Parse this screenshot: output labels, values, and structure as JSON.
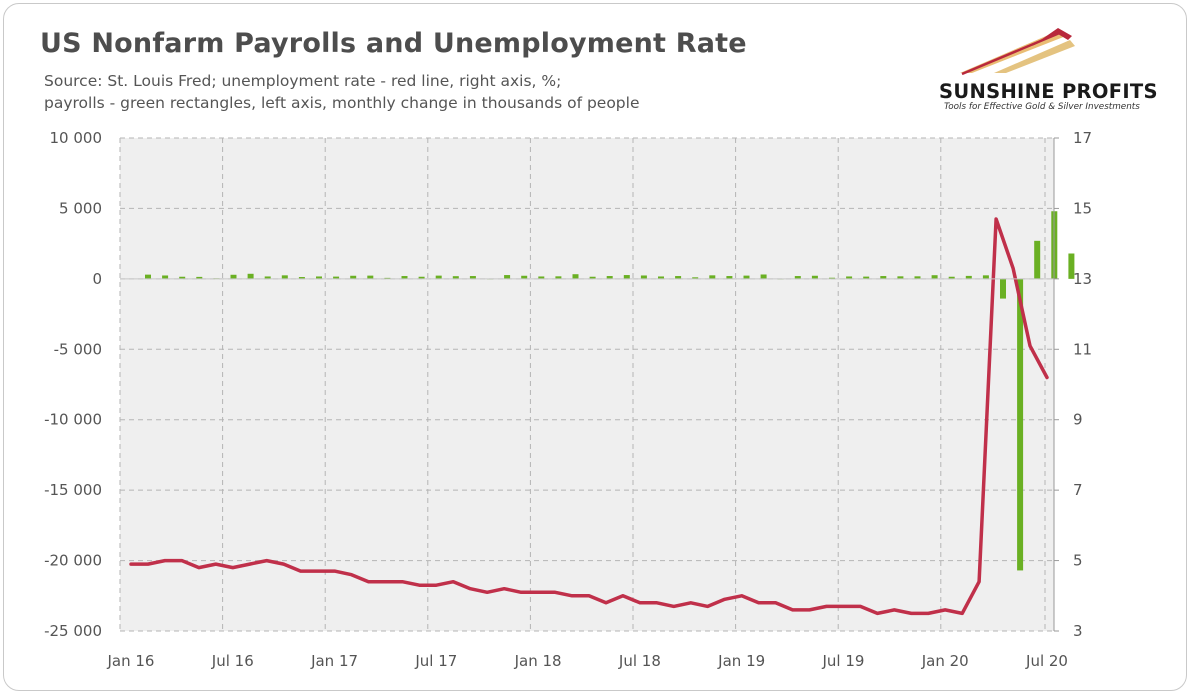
{
  "header": {
    "title": "US Nonfarm Payrolls and Unemployment Rate",
    "subtitle_line1": "Source: St. Louis Fred; unemployment rate -  red line, right axis, %;",
    "subtitle_line2": "payrolls - green rectangles, left axis, monthly change in thousands of people"
  },
  "logo": {
    "name": "SUNSHINE PROFITS",
    "tagline": "Tools for Effective Gold & Silver Investments"
  },
  "colors": {
    "payrolls_bar": "#6ab023",
    "unemployment_line": "#c0304a",
    "plot_background": "#efefef",
    "grid": "#b5b5b5"
  },
  "chart_data": {
    "type": "bar",
    "x": [
      "Jan 16",
      "Feb 16",
      "Mar 16",
      "Apr 16",
      "May 16",
      "Jun 16",
      "Jul 16",
      "Aug 16",
      "Sep 16",
      "Oct 16",
      "Nov 16",
      "Dec 16",
      "Jan 17",
      "Feb 17",
      "Mar 17",
      "Apr 17",
      "May 17",
      "Jun 17",
      "Jul 17",
      "Aug 17",
      "Sep 17",
      "Oct 17",
      "Nov 17",
      "Dec 17",
      "Jan 18",
      "Feb 18",
      "Mar 18",
      "Apr 18",
      "May 18",
      "Jun 18",
      "Jul 18",
      "Aug 18",
      "Sep 18",
      "Oct 18",
      "Nov 18",
      "Dec 18",
      "Jan 19",
      "Feb 19",
      "Mar 19",
      "Apr 19",
      "May 19",
      "Jun 19",
      "Jul 19",
      "Aug 19",
      "Sep 19",
      "Oct 19",
      "Nov 19",
      "Dec 19",
      "Jan 20",
      "Feb 20",
      "Mar 20",
      "Apr 20",
      "May 20",
      "Jun 20",
      "Jul 20"
    ],
    "x_tick_labels": [
      "Jan 16",
      "Jul 16",
      "Jan 17",
      "Jul 17",
      "Jan 18",
      "Jul 18",
      "Jan 19",
      "Jul 19",
      "Jan 20",
      "Jul 20"
    ],
    "series": [
      {
        "axis": "left",
        "type": "bar",
        "values": [
          300,
          240,
          150,
          140,
          40,
          290,
          360,
          170,
          250,
          130,
          170,
          160,
          220,
          230,
          70,
          200,
          150,
          230,
          190,
          200,
          20,
          270,
          220,
          170,
          180,
          330,
          150,
          200,
          270,
          240,
          170,
          200,
          110,
          250,
          200,
          230,
          310,
          20,
          200,
          220,
          80,
          170,
          160,
          200,
          180,
          180,
          260,
          150,
          210,
          250,
          -1400,
          -20700,
          2700,
          4800,
          1800
        ]
      },
      {
        "axis": "right",
        "type": "line",
        "values": [
          4.9,
          4.9,
          5.0,
          5.0,
          4.8,
          4.9,
          4.8,
          4.9,
          5.0,
          4.9,
          4.7,
          4.7,
          4.7,
          4.6,
          4.4,
          4.4,
          4.4,
          4.3,
          4.3,
          4.4,
          4.2,
          4.1,
          4.2,
          4.1,
          4.1,
          4.1,
          4.0,
          4.0,
          3.8,
          4.0,
          3.8,
          3.8,
          3.7,
          3.8,
          3.7,
          3.9,
          4.0,
          3.8,
          3.8,
          3.6,
          3.6,
          3.7,
          3.7,
          3.7,
          3.5,
          3.6,
          3.5,
          3.5,
          3.6,
          3.5,
          4.4,
          14.7,
          13.3,
          11.1,
          10.2
        ]
      }
    ],
    "left_axis": {
      "ticks": [
        "10 000",
        "5 000",
        "0",
        "-5 000",
        "-10 000",
        "-15 000",
        "-20 000",
        "-25 000"
      ],
      "ylim": [
        -25000,
        10000
      ]
    },
    "right_axis": {
      "ticks": [
        "17",
        "15",
        "13",
        "11",
        "9",
        "7",
        "5",
        "3"
      ],
      "ylim": [
        3,
        17
      ]
    },
    "grid": true
  }
}
